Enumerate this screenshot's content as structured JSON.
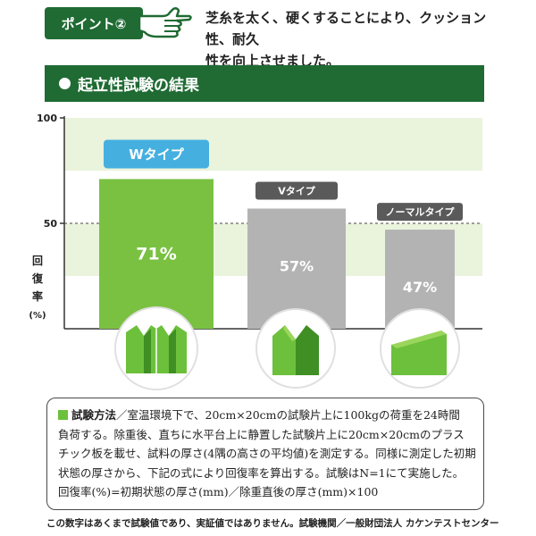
{
  "point": {
    "badge": "ポイント②",
    "text_line1": "芝糸を太く、硬くすることにより、クッション性、耐久",
    "text_line2": "性を向上させました。"
  },
  "section": {
    "title": "起立性試験の結果"
  },
  "chart_data": {
    "type": "bar",
    "categories": [
      "Wタイプ",
      "Vタイプ",
      "ノーマルタイプ"
    ],
    "values": [
      71,
      57,
      47
    ],
    "value_labels": [
      "71%",
      "57%",
      "47%"
    ],
    "ylabel": "回復率(%)",
    "ylabel_chars": [
      "回",
      "復",
      "率",
      "(%)"
    ],
    "yticks": [
      "100",
      "50"
    ],
    "ylim": [
      0,
      100
    ],
    "reference_line": 50,
    "colors": {
      "highlight": "#7ac142",
      "other": "#b3b3b3",
      "band": "#eaf3dc",
      "w_label": "#45b0e0",
      "dark_label": "#5a5a5a"
    }
  },
  "method": {
    "title": "試験方法",
    "sep": "／",
    "line1": "室温環境下で、20cm×20cmの試験片上に100kgの荷重を24時間",
    "line2": "負荷する。除重後、直ちに水平台上に静置した試験片上に20cm×20cmのプラス",
    "line3": "チック板を載せ、試料の厚さ(4隅の高さの平均値)を測定する。同様に測定した初期",
    "line4": "状態の厚さから、下記の式により回復率を算出する。試験はN=1にて実施した。",
    "line5": "回復率(%)=初期状態の厚さ(mm)／除重直後の厚さ(mm)×100"
  },
  "footnote": "この数字はあくまで試験値であり、実証値ではありません。試験機関／一般財団法人 カケンテストセンター"
}
